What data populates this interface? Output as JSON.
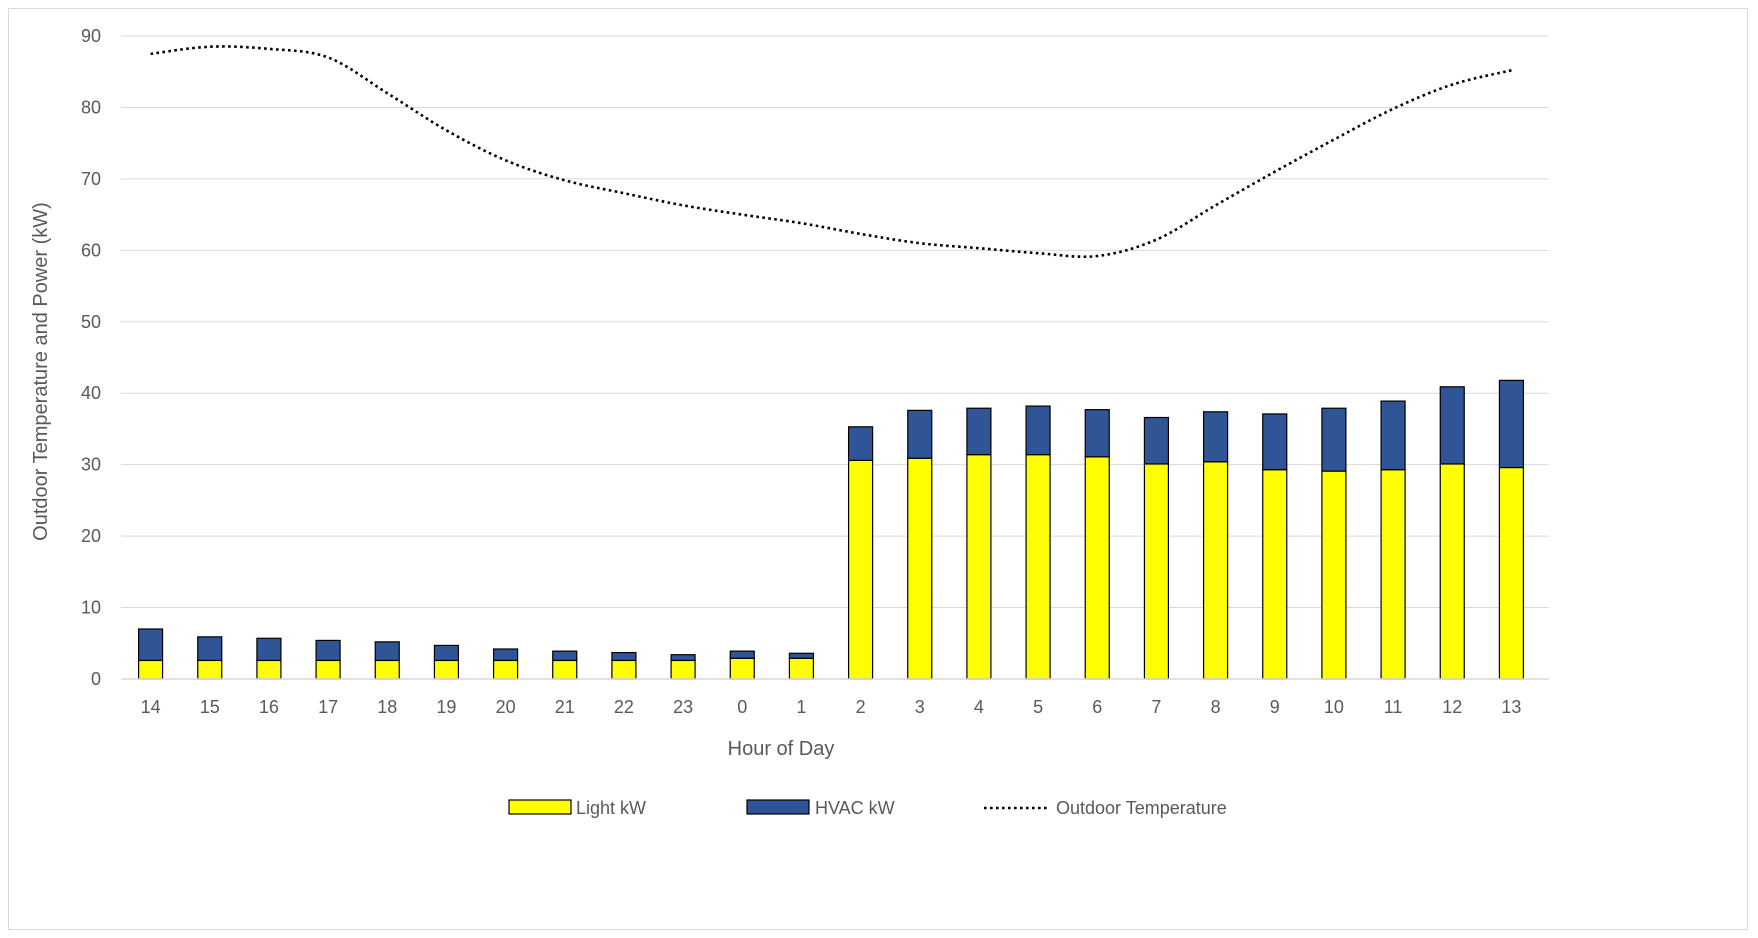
{
  "chart_data": {
    "type": "bar",
    "stacked": true,
    "title": "",
    "xlabel": "Hour of Day",
    "ylabel": "Outdoor Temperature and Power (kW)",
    "ylim": [
      0,
      90
    ],
    "yticks": [
      0,
      10,
      20,
      30,
      40,
      50,
      60,
      70,
      80,
      90
    ],
    "grid": "horizontal",
    "legend_position": "bottom",
    "categories": [
      "14",
      "15",
      "16",
      "17",
      "18",
      "19",
      "20",
      "21",
      "22",
      "23",
      "0",
      "1",
      "2",
      "3",
      "4",
      "5",
      "6",
      "7",
      "8",
      "9",
      "10",
      "11",
      "12",
      "13"
    ],
    "series": [
      {
        "name": "Light kW",
        "type": "bar",
        "color": "#ffff00",
        "values": [
          2.6,
          2.6,
          2.6,
          2.6,
          2.6,
          2.6,
          2.6,
          2.6,
          2.6,
          2.6,
          2.9,
          2.9,
          30.6,
          30.9,
          31.4,
          31.4,
          31.1,
          30.1,
          30.4,
          29.3,
          29.1,
          29.3,
          30.1,
          29.6
        ]
      },
      {
        "name": "HVAC kW",
        "type": "bar",
        "color": "#2f5597",
        "values": [
          4.4,
          3.3,
          3.1,
          2.8,
          2.6,
          2.1,
          1.6,
          1.3,
          1.1,
          0.8,
          1.0,
          0.7,
          4.7,
          6.7,
          6.5,
          6.8,
          6.6,
          6.5,
          7.0,
          7.8,
          8.8,
          9.6,
          10.8,
          12.2
        ]
      },
      {
        "name": "Outdoor Temperature",
        "type": "line",
        "style": "dotted",
        "color": "#000000",
        "values": [
          87.5,
          88.5,
          88.2,
          87.0,
          82.0,
          76.8,
          72.6,
          69.8,
          68.0,
          66.3,
          65.0,
          63.8,
          62.3,
          61.0,
          60.3,
          59.6,
          59.2,
          61.5,
          66.3,
          71.0,
          75.5,
          79.8,
          83.2,
          85.2
        ]
      }
    ]
  }
}
